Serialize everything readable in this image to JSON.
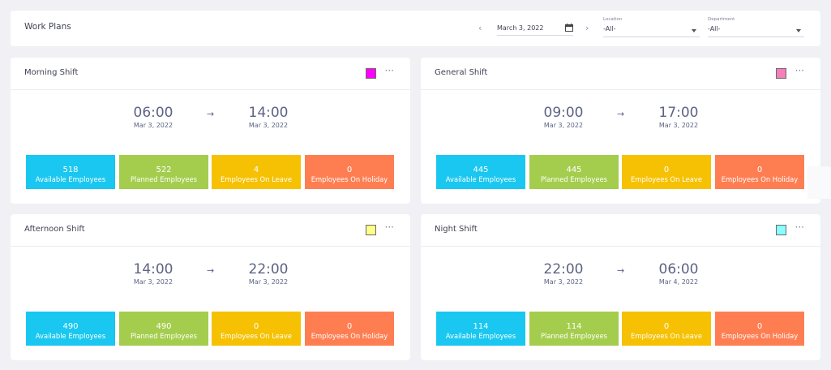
{
  "header": {
    "title": "Work Plans",
    "prev_icon": "‹",
    "next_icon": "›",
    "date": "March 3, 2022",
    "location": {
      "label": "Location",
      "value": "-All-"
    },
    "department": {
      "label": "Department",
      "value": "-All-"
    }
  },
  "shifts": [
    {
      "name": "Morning Shift",
      "color": "#ff00ff",
      "start_time": "06:00",
      "start_date": "Mar 3, 2022",
      "end_time": "14:00",
      "end_date": "Mar 3, 2022",
      "stats": [
        {
          "value": "518",
          "label": "Available Employees"
        },
        {
          "value": "522",
          "label": "Planned Employees"
        },
        {
          "value": "4",
          "label": "Employees On Leave"
        },
        {
          "value": "0",
          "label": "Employees On Holiday"
        }
      ]
    },
    {
      "name": "General Shift",
      "color": "#f57fbb",
      "start_time": "09:00",
      "start_date": "Mar 3, 2022",
      "end_time": "17:00",
      "end_date": "Mar 3, 2022",
      "stats": [
        {
          "value": "445",
          "label": "Available Employees"
        },
        {
          "value": "445",
          "label": "Planned Employees"
        },
        {
          "value": "0",
          "label": "Employees On Leave"
        },
        {
          "value": "0",
          "label": "Employees On Holiday"
        }
      ]
    },
    {
      "name": "Afternoon Shift",
      "color": "#ffff88",
      "start_time": "14:00",
      "start_date": "Mar 3, 2022",
      "end_time": "22:00",
      "end_date": "Mar 3, 2022",
      "stats": [
        {
          "value": "490",
          "label": "Available Employees"
        },
        {
          "value": "490",
          "label": "Planned Employees"
        },
        {
          "value": "0",
          "label": "Employees On Leave"
        },
        {
          "value": "0",
          "label": "Employees On Holiday"
        }
      ]
    },
    {
      "name": "Night Shift",
      "color": "#88ffff",
      "start_time": "22:00",
      "start_date": "Mar 3, 2022",
      "end_time": "06:00",
      "end_date": "Mar 4, 2022",
      "stats": [
        {
          "value": "114",
          "label": "Available Employees"
        },
        {
          "value": "114",
          "label": "Planned Employees"
        },
        {
          "value": "0",
          "label": "Employees On Leave"
        },
        {
          "value": "0",
          "label": "Employees On Holiday"
        }
      ]
    }
  ],
  "icons": {
    "more": "···",
    "arrow": "→",
    "calendar": "calendar-icon"
  }
}
